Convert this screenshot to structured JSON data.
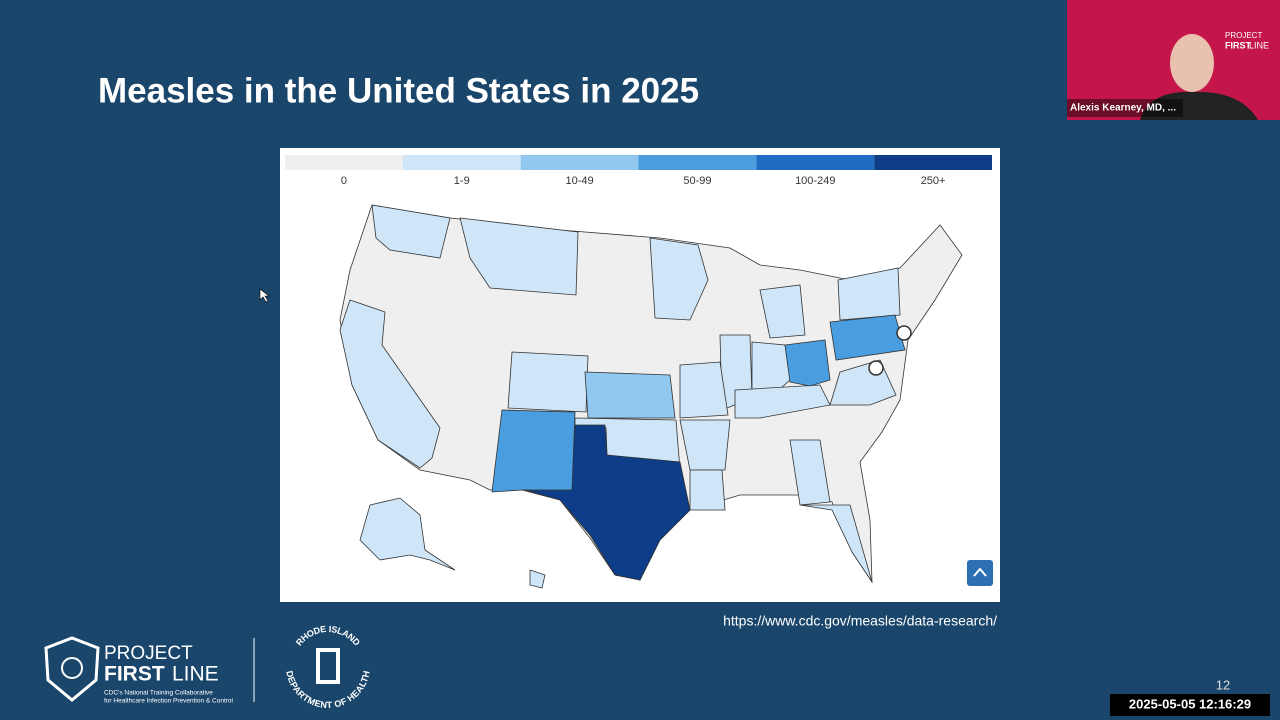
{
  "slide": {
    "title": "Measles in the United States in 2025",
    "source_url": "https://www.cdc.gov/measles/data-research/",
    "page_number": "12"
  },
  "legend": {
    "items": [
      {
        "label": "0",
        "color": "#efefef"
      },
      {
        "label": "1-9",
        "color": "#cfe6f8"
      },
      {
        "label": "10-49",
        "color": "#90c8f0"
      },
      {
        "label": "50-99",
        "color": "#4a9ee0"
      },
      {
        "label": "100-249",
        "color": "#1f6cc2"
      },
      {
        "label": "250+",
        "color": "#0d3d88"
      }
    ]
  },
  "logos": {
    "project": "PROJECT",
    "first": "FIRST",
    "line": "LINE",
    "tagline_1": "CDC's National Training Collaborative",
    "tagline_2": "for Healthcare Infection Prevention & Control",
    "ri_top": "RHODE ISLAND",
    "ri_bottom": "DEPARTMENT OF HEALTH"
  },
  "video": {
    "participant_name": "Alexis Kearney, MD, ...",
    "logo_project": "PROJECT",
    "logo_first": "FIRST",
    "logo_line": "LINE"
  },
  "timestamp": "2025-05-05 12:16:29"
}
